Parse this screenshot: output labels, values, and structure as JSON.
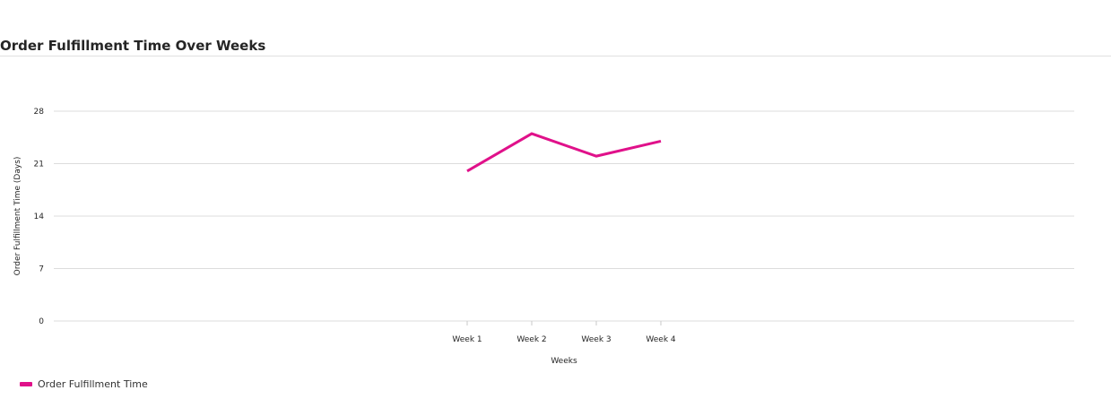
{
  "header": {
    "title": "Order Fulfillment Time Over Weeks"
  },
  "legend": {
    "items": [
      {
        "label": "Order Fulfillment Time",
        "color": "#E0118A"
      }
    ]
  },
  "chart_data": {
    "type": "line",
    "title": "Order Fulfillment Time Over Weeks",
    "xlabel": "Weeks",
    "ylabel": "Order Fulfillment Time (Days)",
    "categories": [
      "Week 1",
      "Week 2",
      "Week 3",
      "Week 4"
    ],
    "series": [
      {
        "name": "Order Fulfillment Time",
        "values": [
          20,
          25,
          22,
          24
        ],
        "color": "#E0118A"
      }
    ],
    "ylim": [
      0,
      28
    ],
    "yticks": [
      0,
      7,
      14,
      21,
      28
    ],
    "grid": true,
    "legend_position": "bottom-left"
  }
}
